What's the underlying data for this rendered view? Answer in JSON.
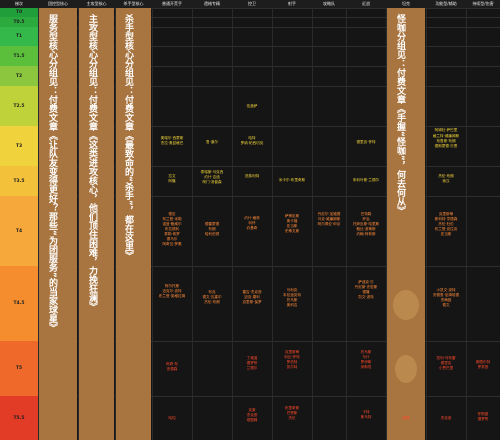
{
  "headers": [
    "梯次",
    "团控型核心",
    "主攻型核心",
    "杀手型核心",
    "普通开荒手",
    "遗械专精",
    "控卫",
    "射手",
    "攻略队",
    "近战",
    "坦克",
    "功能型/辅助",
    "持续型/伤害"
  ],
  "tiers": [
    "T0",
    "T0.5",
    "T1",
    "T1.5",
    "T2",
    "T2.5",
    "T3",
    "T3.5",
    "T4",
    "T4.5",
    "T5",
    "T5.5"
  ],
  "tier_colors": [
    "#1f9e3a",
    "#2daa3e",
    "#34b84a",
    "#5cbf3c",
    "#8cc63f",
    "#bfd23a",
    "#f0d23c",
    "#f4c13a",
    "#f6a83a",
    "#f58d2f",
    "#ef6a2a",
    "#e23b26"
  ],
  "banners": {
    "b1": "服务型核心分组见：付费文章《让队友变得更好？那些“为团服务”的当家球星》",
    "b2": "主攻型核心分组见：付费文章《这类进攻核心，他们顶住困难，力挽狂澜》",
    "b3": "杀手型核心分组见：付费文章《最致命的“杀手”，都在这里》",
    "b4": "怪咖分组见：付费文章《手握“怪咖”，何去何从》"
  },
  "cells": {
    "c_t25_a": [
      "伍盖萨"
    ],
    "c_t3_a": [
      "奥瑞尔·西蒙斯",
      "杰拉·奥兹格巴"
    ],
    "c_t3_b": [
      "鲁·道尔"
    ],
    "c_t3_c": [
      "哈特",
      "罗纳·帕西切克"
    ],
    "c_t3_d": [
      "德里克·怀特"
    ],
    "c_t3_e": [
      "阿姆杜·萨巴里"
    ],
    "c_t3_f": [
      "格兰特·威廉姆斯",
      "布鲁斯·布朗",
      "德斯蒙德·贝恩"
    ],
    "c_t35_a": [
      "拉文",
      "阿隆"
    ],
    "c_t35_b": [
      "泰瑞斯·马克西",
      "约什·吉迪",
      "阿门·汤普森"
    ],
    "c_t35_c": [
      "范弗利特"
    ],
    "c_t35_d": [
      "米卡尔·布里奇斯"
    ],
    "c_t35_e": [
      "朱利叶斯·兰德尔"
    ],
    "c_t35_f": [
      "杰伦·布朗",
      "索汉"
    ],
    "c_t4_a": [
      "德尼",
      "布兰登·米勒",
      "诺曼·鲍威尔",
      "布拉德利",
      "泰勒·希罗",
      "德马尔",
      "阿奇瓦·罗素"
    ],
    "c_t4_b": [
      "德雷蒙德",
      "布朗",
      "哈利伯顿"
    ],
    "c_t4_c": [
      "约什·格林",
      "科怀",
      "约基奇"
    ],
    "c_t4_d": [
      "萨博尼斯",
      "奥卡福",
      "亚当斯",
      "史蒂文斯"
    ],
    "c_t4_e": [
      "丹尼尔·加福德",
      "马克·威廉姆斯",
      "阿尔佩伦·申京"
    ],
    "c_t4_f": [
      "巴特勒",
      "乔治",
      "托拜厄斯·哈里斯",
      "鲍比·波蒂斯",
      "约翰·柯林斯"
    ],
    "c_t4_g": [
      "克里斯蒂",
      "斯科特·亨德森",
      "杰伦·杜伦",
      "布兰登·克拉克",
      "亚当斯"
    ],
    "c_t45_a": [
      "阿尔托斯",
      "迈克尔·波特",
      "布兰登·英格拉姆"
    ],
    "c_t45_b": [
      "布克",
      "德文·瓦塞尔",
      "杰伦·布朗"
    ],
    "c_t45_c": [
      "马利克",
      "本尼迪克特",
      "托马斯",
      "奥科吉"
    ],
    "c_t45_d": [
      "雷吉·杰克逊",
      "迈克·康利",
      "克里斯·保罗"
    ],
    "c_t45_e": [
      "萨迪克·贝",
      "丹尼斯·史密斯",
      "德隆",
      "凯文·波特"
    ],
    "c_t45_f": [
      "小凯文·波特",
      "安德鲁·尼姆哈德",
      "杰梅因",
      "德文"
    ],
    "c_t5_a": [
      "阿奇·布",
      "安德森"
    ],
    "c_t5_b": [
      "丁威迪",
      "德罗赞",
      "兰德尔"
    ],
    "c_t5_c": [
      "克里斯蒂",
      "科比·怀特",
      "罗伯特",
      "凯尔特"
    ],
    "c_t5_d": [
      "托马斯",
      "马什",
      "罗伊斯",
      "伊斯坦"
    ],
    "c_t5_e": [
      "凯利·乌布雷",
      "德里克",
      "小贾巴里"
    ],
    "c_t5_f": [
      "斯图尔特",
      "罗宾逊"
    ],
    "c_t55_a": [
      "哈珀"
    ],
    "c_t55_b": [
      "克莱",
      "杰克逊",
      "塔图姆"
    ],
    "c_t55_c": [
      "布里奇斯",
      "巴恩斯",
      "杰伦"
    ],
    "c_t55_d": [
      "卡特",
      "斯马特"
    ],
    "c_t55_e": [
      "博扬"
    ],
    "c_t55_f": [
      "杰克逊"
    ],
    "c_t55_g": [
      "怀斯曼",
      "德罗赞"
    ]
  }
}
